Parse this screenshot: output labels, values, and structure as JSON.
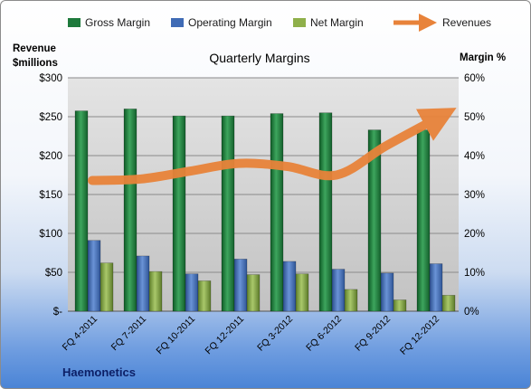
{
  "chart_data": {
    "type": "bar",
    "title": "Quarterly Margins",
    "footer": "Haemonetics",
    "left_axis_label": [
      "Revenue",
      "$millions"
    ],
    "right_axis_label": "Margin %",
    "categories": [
      "FQ 4-2011",
      "FQ 7-2011",
      "FQ 10-2011",
      "FQ 12-2011",
      "FQ 3-2012",
      "FQ 6-2012",
      "FQ 9-2012",
      "FQ 12-2012"
    ],
    "left_ticks": [
      "$-",
      "$50",
      "$100",
      "$150",
      "$200",
      "$250",
      "$300"
    ],
    "right_ticks": [
      "0%",
      "10%",
      "20%",
      "30%",
      "40%",
      "50%",
      "60%"
    ],
    "ylim_left": [
      0,
      300
    ],
    "ylim_right": [
      0,
      60
    ],
    "grid": true,
    "legend_position": "top",
    "series": [
      {
        "name": "Gross Margin",
        "axis": "right",
        "type": "bar",
        "color": "#1e7a3c",
        "values": [
          51.5,
          52,
          50.2,
          50.2,
          50.8,
          51,
          46.6,
          46.6
        ]
      },
      {
        "name": "Operating Margin",
        "axis": "right",
        "type": "bar",
        "color": "#3f6bb5",
        "values": [
          18.2,
          14.2,
          9.6,
          13.4,
          12.8,
          10.8,
          9.8,
          12.2
        ]
      },
      {
        "name": "Net Margin",
        "axis": "right",
        "type": "bar",
        "color": "#7da042",
        "values": [
          12.4,
          10.2,
          7.8,
          9.4,
          9.6,
          5.6,
          2.9,
          4.1
        ]
      },
      {
        "name": "Revenues",
        "axis": "left",
        "type": "line",
        "color": "#e8833a",
        "values": [
          168,
          170,
          180,
          190,
          186,
          175,
          212,
          246
        ]
      }
    ]
  }
}
